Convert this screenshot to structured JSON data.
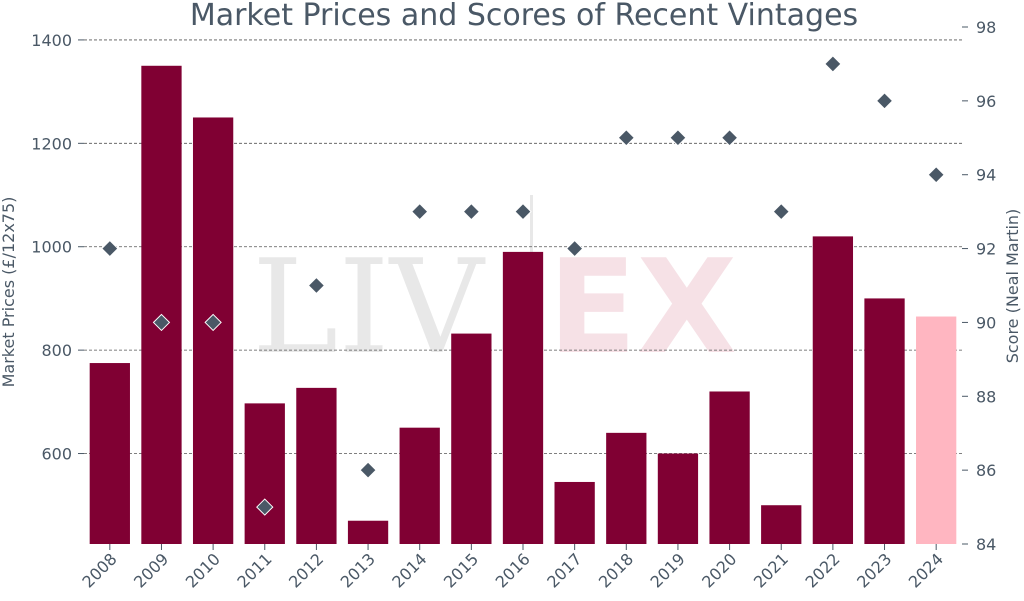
{
  "chart_data": {
    "type": "bar",
    "title": "Market Prices and Scores of Recent Vintages",
    "xlabel": "",
    "ylabel": "Market Prices (£/12x75)",
    "y2label": "Score (Neal Martin)",
    "categories": [
      "2008",
      "2009",
      "2010",
      "2011",
      "2012",
      "2013",
      "2014",
      "2015",
      "2016",
      "2017",
      "2018",
      "2019",
      "2020",
      "2021",
      "2022",
      "2023",
      "2024"
    ],
    "series": [
      {
        "name": "",
        "axis": "left",
        "kind": "bar",
        "values": [
          775,
          1350,
          1250,
          697,
          727,
          470,
          650,
          832,
          990,
          545,
          640,
          600,
          720,
          500,
          1020,
          900,
          865
        ]
      },
      {
        "name": "",
        "axis": "right",
        "kind": "scatter",
        "values": [
          92,
          90,
          90,
          85,
          91,
          86,
          93,
          93,
          93,
          92,
          95,
          95,
          95,
          93,
          97,
          96,
          94
        ]
      }
    ],
    "ylim": [
      425,
      1425
    ],
    "y2lim": [
      84,
      98
    ],
    "yticks": [
      "1400",
      "1200",
      "1000",
      "800",
      "600"
    ],
    "y2ticks": [
      "98",
      "96",
      "94",
      "92",
      "90",
      "88",
      "86",
      "84"
    ],
    "bar_colors": [
      "#800033",
      "#800033",
      "#800033",
      "#800033",
      "#800033",
      "#800033",
      "#800033",
      "#800033",
      "#800033",
      "#800033",
      "#800033",
      "#800033",
      "#800033",
      "#800033",
      "#800033",
      "#800033",
      "#ffb6c1"
    ],
    "marker_color": "#4a5866",
    "marker_shape": "diamond",
    "grid": true,
    "legend": "none",
    "watermark": "LIV-EX"
  }
}
